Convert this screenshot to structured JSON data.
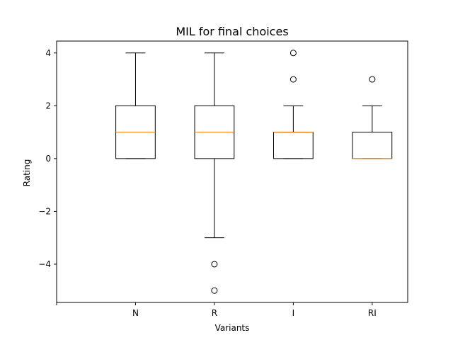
{
  "chart_data": {
    "type": "box",
    "title": "MIL for final choices",
    "xlabel": "Variants",
    "ylabel": "Rating",
    "ylim": [
      -5.45,
      4.45
    ],
    "yticks": [
      -4,
      -2,
      0,
      2,
      4
    ],
    "ytick_labels": [
      "−4",
      "−2",
      "0",
      "2",
      "4"
    ],
    "x_positions": [
      0,
      1,
      2,
      3,
      4
    ],
    "xlim": [
      0,
      4.45
    ],
    "xtick_labels": [
      "",
      "N",
      "R",
      "I",
      "RI"
    ],
    "series": [
      {
        "category": "N",
        "x": 1,
        "q1": 0,
        "median": 1,
        "q3": 2,
        "whisker_low": 0,
        "whisker_high": 4,
        "outliers": []
      },
      {
        "category": "R",
        "x": 2,
        "q1": 0,
        "median": 1,
        "q3": 2,
        "whisker_low": -3,
        "whisker_high": 4,
        "outliers": [
          -4,
          -5
        ]
      },
      {
        "category": "I",
        "x": 3,
        "q1": 0,
        "median": 1,
        "q3": 1,
        "whisker_low": 0,
        "whisker_high": 2,
        "outliers": [
          3,
          4
        ]
      },
      {
        "category": "RI",
        "x": 4,
        "q1": 0,
        "median": 0,
        "q3": 1,
        "whisker_low": 0,
        "whisker_high": 2,
        "outliers": [
          3
        ]
      }
    ],
    "grid": false,
    "colors": {
      "box": "#000000",
      "median": "#ff7f0e",
      "whisker": "#000000",
      "outlier": "#000000"
    }
  }
}
